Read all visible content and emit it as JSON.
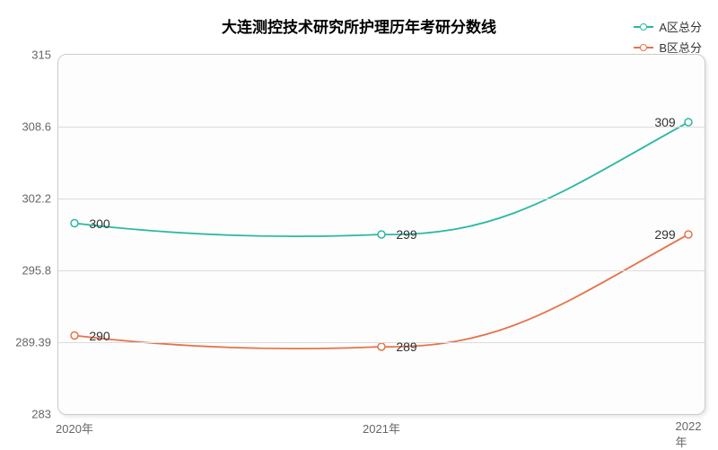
{
  "chart": {
    "type": "line",
    "title": "大连测控技术研究所护理历年考研分数线",
    "title_fontsize": 17,
    "title_fontweight": "bold",
    "title_color": "#000000",
    "background_color": "#fdfdfd",
    "container_bg": "#ffffff",
    "grid_color": "#dcdcdc",
    "border_color": "#cccccc",
    "border_radius": 10,
    "x_categories": [
      "2020年",
      "2021年",
      "2022年"
    ],
    "ylim": [
      283,
      315
    ],
    "y_ticks": [
      283,
      289.39,
      295.8,
      302.2,
      308.6,
      315
    ],
    "y_tick_labels": [
      "283",
      "289.39",
      "295.8",
      "302.2",
      "308.6",
      "315"
    ],
    "axis_label_color": "#666666",
    "axis_fontsize": 13,
    "point_label_fontsize": 14,
    "point_label_color": "#333333",
    "series": [
      {
        "name": "A区总分",
        "color": "#2ab8a3",
        "values": [
          300,
          299,
          309
        ],
        "line_width": 1.8,
        "marker": "circle",
        "marker_size": 4,
        "smooth": true
      },
      {
        "name": "B区总分",
        "color": "#e7724a",
        "values": [
          290,
          289,
          299
        ],
        "line_width": 1.8,
        "marker": "circle",
        "marker_size": 4,
        "smooth": true
      }
    ],
    "legend": {
      "position": "top-right",
      "fontsize": 13,
      "color": "#333333"
    }
  }
}
